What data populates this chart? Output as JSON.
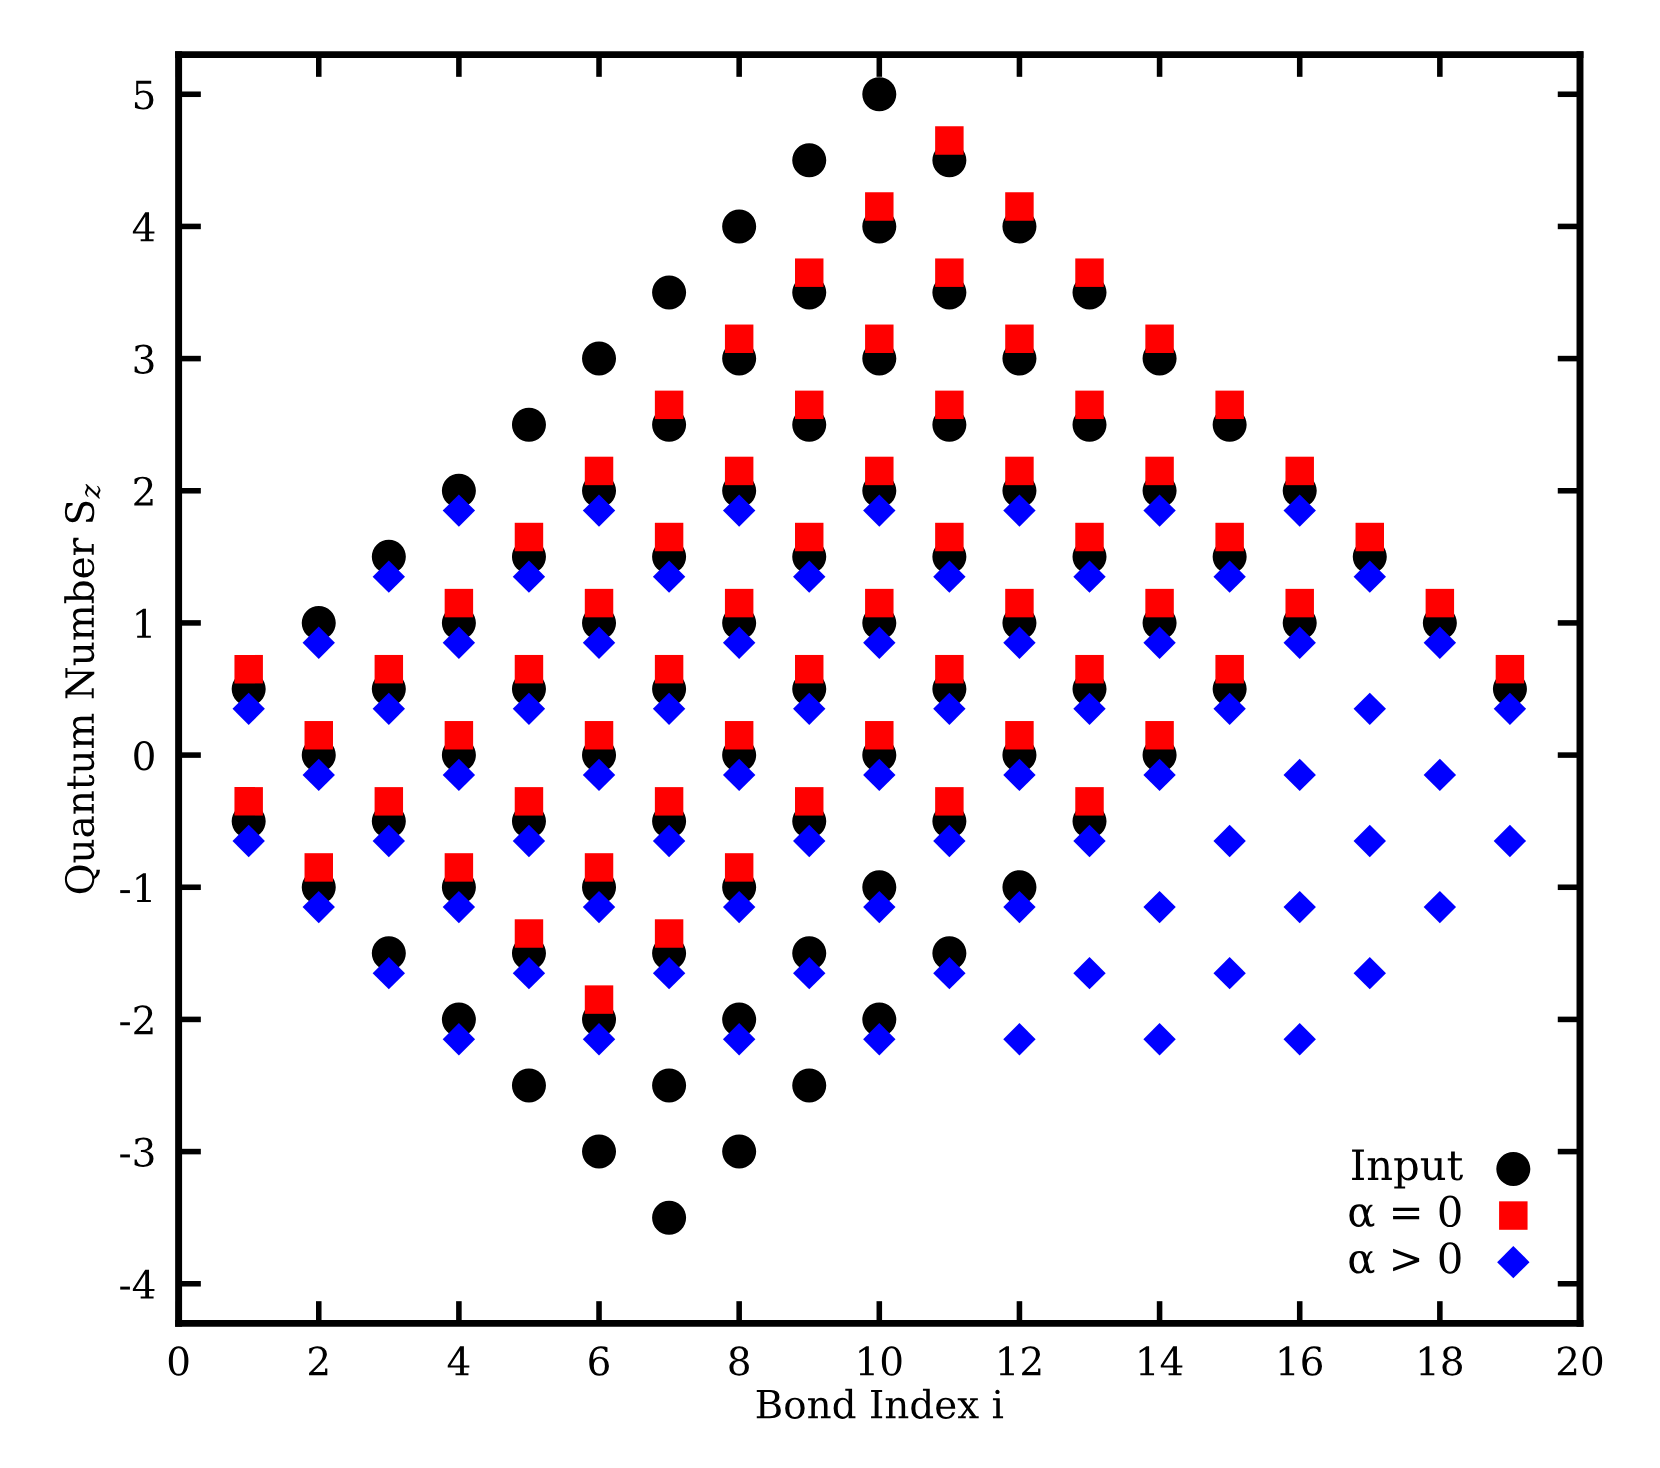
{
  "chart_data": {
    "type": "scatter",
    "xlabel": "Bond Index i",
    "ylabel": "Quantum Number S$_{z}$",
    "xlim": [
      0,
      20
    ],
    "ylim": [
      -4.3,
      5.3
    ],
    "xticks": [
      0,
      2,
      4,
      6,
      8,
      10,
      12,
      14,
      16,
      18,
      20
    ],
    "yticks": [
      -4,
      -3,
      -2,
      -1,
      0,
      1,
      2,
      3,
      4,
      5
    ],
    "legend": "bottom right",
    "series": [
      {
        "name": "Input",
        "color": "#000000",
        "marker": "circle",
        "x": [
          1,
          1,
          2,
          2,
          2,
          3,
          3,
          3,
          3,
          4,
          4,
          4,
          4,
          4,
          5,
          5,
          5,
          5,
          5,
          5,
          6,
          6,
          6,
          6,
          6,
          6,
          6,
          7,
          7,
          7,
          7,
          7,
          7,
          7,
          7,
          8,
          8,
          8,
          8,
          8,
          8,
          8,
          8,
          9,
          9,
          9,
          9,
          9,
          9,
          9,
          9,
          10,
          10,
          10,
          10,
          10,
          10,
          10,
          10,
          11,
          11,
          11,
          11,
          11,
          11,
          11,
          12,
          12,
          12,
          12,
          12,
          12,
          13,
          13,
          13,
          13,
          13,
          14,
          14,
          14,
          14,
          15,
          15,
          15,
          16,
          16,
          17,
          18,
          19
        ],
        "values": [
          0.5,
          -0.5,
          1,
          0,
          -1,
          1.5,
          0.5,
          -0.5,
          -1.5,
          2,
          1,
          0,
          -1,
          -2,
          2.5,
          1.5,
          0.5,
          -0.5,
          -1.5,
          -2.5,
          3,
          2,
          1,
          0,
          -1,
          -2,
          -3,
          3.5,
          2.5,
          1.5,
          0.5,
          -0.5,
          -1.5,
          -2.5,
          -3.5,
          4,
          3,
          2,
          1,
          0,
          -1,
          -2,
          -3,
          4.5,
          3.5,
          2.5,
          1.5,
          0.5,
          -0.5,
          -1.5,
          -2.5,
          5,
          4,
          3,
          2,
          1,
          0,
          -1,
          -2,
          4.5,
          3.5,
          2.5,
          1.5,
          0.5,
          -0.5,
          -1.5,
          4,
          3,
          2,
          1,
          0,
          -1,
          3.5,
          2.5,
          1.5,
          0.5,
          -0.5,
          3,
          2,
          1,
          0,
          2.5,
          1.5,
          0.5,
          2,
          1,
          1.5,
          1,
          0.5
        ]
      },
      {
        "name": "α = 0",
        "color": "#ff0000",
        "marker": "square",
        "x": [
          1,
          1,
          2,
          2,
          3,
          3,
          4,
          4,
          4,
          5,
          5,
          5,
          5,
          6,
          6,
          6,
          6,
          6,
          7,
          7,
          7,
          7,
          7,
          8,
          8,
          8,
          8,
          8,
          9,
          9,
          9,
          9,
          9,
          10,
          10,
          10,
          10,
          10,
          11,
          11,
          11,
          11,
          11,
          11,
          12,
          12,
          12,
          12,
          12,
          13,
          13,
          13,
          13,
          13,
          14,
          14,
          14,
          14,
          15,
          15,
          15,
          16,
          16,
          17,
          18,
          19
        ],
        "values": [
          0.65,
          -0.35,
          0.15,
          -0.85,
          0.65,
          -0.35,
          1.15,
          0.15,
          -0.85,
          1.65,
          0.65,
          -0.35,
          -1.35,
          2.15,
          1.15,
          0.15,
          -0.85,
          -1.85,
          2.65,
          1.65,
          0.65,
          -0.35,
          -1.35,
          3.15,
          2.15,
          1.15,
          0.15,
          -0.85,
          3.65,
          2.65,
          1.65,
          0.65,
          -0.35,
          4.15,
          3.15,
          2.15,
          1.15,
          0.15,
          4.65,
          3.65,
          2.65,
          1.65,
          0.65,
          -0.35,
          4.15,
          3.15,
          2.15,
          1.15,
          0.15,
          3.65,
          2.65,
          1.65,
          0.65,
          -0.35,
          3.15,
          2.15,
          1.15,
          0.15,
          2.65,
          1.65,
          0.65,
          2.15,
          1.15,
          1.65,
          1.15,
          0.65
        ]
      },
      {
        "name": "α > 0",
        "color": "#0000ff",
        "marker": "diamond",
        "x": [
          1,
          1,
          2,
          2,
          2,
          3,
          3,
          3,
          3,
          4,
          4,
          4,
          4,
          4,
          5,
          5,
          5,
          5,
          6,
          6,
          6,
          6,
          6,
          7,
          7,
          7,
          7,
          8,
          8,
          8,
          8,
          8,
          9,
          9,
          9,
          9,
          10,
          10,
          10,
          10,
          10,
          11,
          11,
          11,
          11,
          12,
          12,
          12,
          12,
          12,
          13,
          13,
          13,
          13,
          14,
          14,
          14,
          14,
          14,
          15,
          15,
          15,
          15,
          16,
          16,
          16,
          16,
          16,
          17,
          17,
          17,
          17,
          18,
          18,
          18,
          19,
          19
        ],
        "values": [
          0.35,
          -0.65,
          0.85,
          -0.15,
          -1.15,
          1.35,
          0.35,
          -0.65,
          -1.65,
          1.85,
          0.85,
          -0.15,
          -1.15,
          -2.15,
          1.35,
          0.35,
          -0.65,
          -1.65,
          1.85,
          0.85,
          -0.15,
          -1.15,
          -2.15,
          1.35,
          0.35,
          -0.65,
          -1.65,
          1.85,
          0.85,
          -0.15,
          -1.15,
          -2.15,
          1.35,
          0.35,
          -0.65,
          -1.65,
          1.85,
          0.85,
          -0.15,
          -1.15,
          -2.15,
          1.35,
          0.35,
          -0.65,
          -1.65,
          1.85,
          0.85,
          -0.15,
          -1.15,
          -2.15,
          1.35,
          0.35,
          -0.65,
          -1.65,
          1.85,
          0.85,
          -0.15,
          -1.15,
          -2.15,
          1.35,
          0.35,
          -0.65,
          -1.65,
          1.85,
          0.85,
          -0.15,
          -1.15,
          -2.15,
          1.35,
          0.35,
          -0.65,
          -1.65,
          0.85,
          -0.15,
          -1.15,
          0.35,
          -0.65
        ]
      }
    ]
  }
}
